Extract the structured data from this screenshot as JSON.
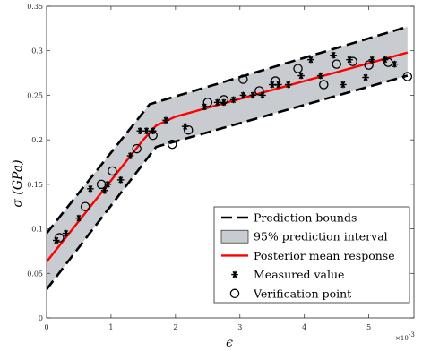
{
  "chart_data": {
    "type": "line",
    "xlabel": "ϵ",
    "ylabel": "σ (GPa)",
    "x_multiplier": "×10",
    "x_multiplier_exp": "-3",
    "xlim": [
      0,
      5.7
    ],
    "ylim": [
      0,
      0.35
    ],
    "x_ticks": [
      0,
      1,
      2,
      3,
      4,
      5
    ],
    "x_tick_labels": [
      "0",
      "1",
      "2",
      "3",
      "4",
      "5"
    ],
    "y_ticks": [
      0,
      0.05,
      0.1,
      0.15,
      0.2,
      0.25,
      0.3,
      0.35
    ],
    "y_tick_labels": [
      "0",
      "0.05",
      "0.1",
      "0.15",
      "0.2",
      "0.25",
      "0.3",
      "0.35"
    ],
    "legend_position": "bottom-right",
    "colors": {
      "mean": "#ff0000",
      "band": "#c8ccd0",
      "bounds": "#000000",
      "points": "#000000"
    },
    "series": [
      {
        "name": "Prediction bounds",
        "kind": "bounds",
        "upper": {
          "x": [
            0,
            1.6,
            5.6
          ],
          "y": [
            0.095,
            0.24,
            0.327
          ]
        },
        "lower": {
          "x": [
            0,
            1.7,
            5.6
          ],
          "y": [
            0.032,
            0.192,
            0.272
          ]
        }
      },
      {
        "name": "95% prediction interval",
        "kind": "band"
      },
      {
        "name": "Posterior mean response",
        "kind": "mean",
        "x": [
          0,
          1.5,
          1.7,
          2.0,
          5.6
        ],
        "y": [
          0.063,
          0.2,
          0.216,
          0.226,
          0.298
        ]
      },
      {
        "name": "Measured value",
        "kind": "star",
        "x": [
          0.15,
          0.3,
          0.5,
          0.68,
          0.9,
          0.95,
          1.15,
          1.3,
          1.45,
          1.55,
          1.65,
          1.85,
          2.15,
          2.45,
          2.65,
          2.75,
          2.9,
          3.05,
          3.2,
          3.35,
          3.5,
          3.6,
          3.75,
          3.95,
          4.1,
          4.25,
          4.45,
          4.6,
          4.7,
          4.95,
          5.05,
          5.25,
          5.4
        ],
        "y": [
          0.087,
          0.095,
          0.112,
          0.145,
          0.143,
          0.15,
          0.155,
          0.182,
          0.21,
          0.21,
          0.21,
          0.222,
          0.215,
          0.237,
          0.242,
          0.242,
          0.245,
          0.25,
          0.25,
          0.25,
          0.262,
          0.262,
          0.262,
          0.272,
          0.29,
          0.272,
          0.295,
          0.262,
          0.29,
          0.27,
          0.29,
          0.29,
          0.285
        ]
      },
      {
        "name": "Verification point",
        "kind": "circle",
        "x": [
          0.2,
          0.6,
          0.85,
          1.02,
          1.4,
          1.65,
          1.95,
          2.2,
          2.5,
          2.75,
          3.05,
          3.3,
          3.55,
          3.9,
          4.3,
          4.5,
          4.75,
          5.0,
          5.3,
          5.6
        ],
        "y": [
          0.09,
          0.125,
          0.15,
          0.165,
          0.19,
          0.205,
          0.195,
          0.211,
          0.242,
          0.245,
          0.268,
          0.255,
          0.266,
          0.28,
          0.262,
          0.285,
          0.288,
          0.284,
          0.287,
          0.271
        ]
      }
    ]
  }
}
